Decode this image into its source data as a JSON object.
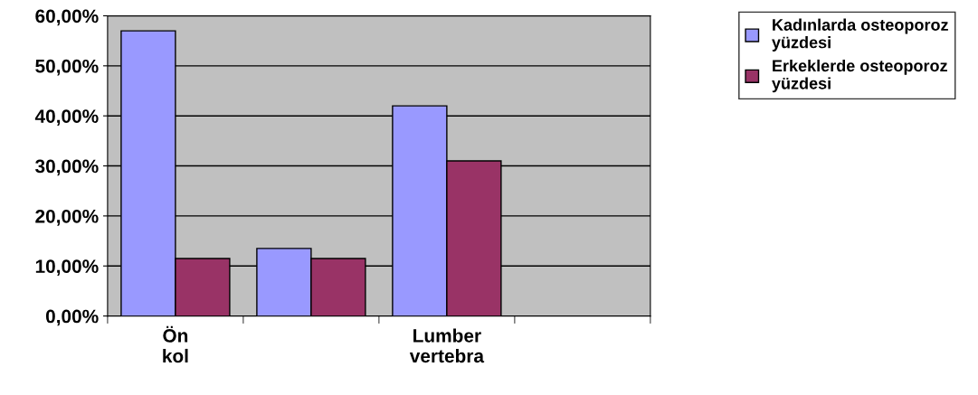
{
  "chart_data": {
    "type": "bar",
    "categories": [
      "Ön kol",
      null,
      "Lumber vertebra",
      null
    ],
    "series": [
      {
        "name": "Kadınlarda osteoporoz yüzdesi",
        "color": "#9999ff",
        "values": [
          57,
          13.5,
          42,
          null
        ]
      },
      {
        "name": "Erkeklerde osteoporoz yüzdesi",
        "color": "#993366",
        "values": [
          11.5,
          11.5,
          31,
          null
        ]
      }
    ],
    "ylim": [
      0,
      60
    ],
    "yticks": [
      {
        "value": 0,
        "label": "0,00%"
      },
      {
        "value": 10,
        "label": "10,00%"
      },
      {
        "value": 20,
        "label": "20,00%"
      },
      {
        "value": 30,
        "label": "30,00%"
      },
      {
        "value": 40,
        "label": "40,00%"
      },
      {
        "value": 50,
        "label": "50,00%"
      },
      {
        "value": 60,
        "label": "60,00%"
      }
    ],
    "grid": "y",
    "legend": "top right"
  }
}
